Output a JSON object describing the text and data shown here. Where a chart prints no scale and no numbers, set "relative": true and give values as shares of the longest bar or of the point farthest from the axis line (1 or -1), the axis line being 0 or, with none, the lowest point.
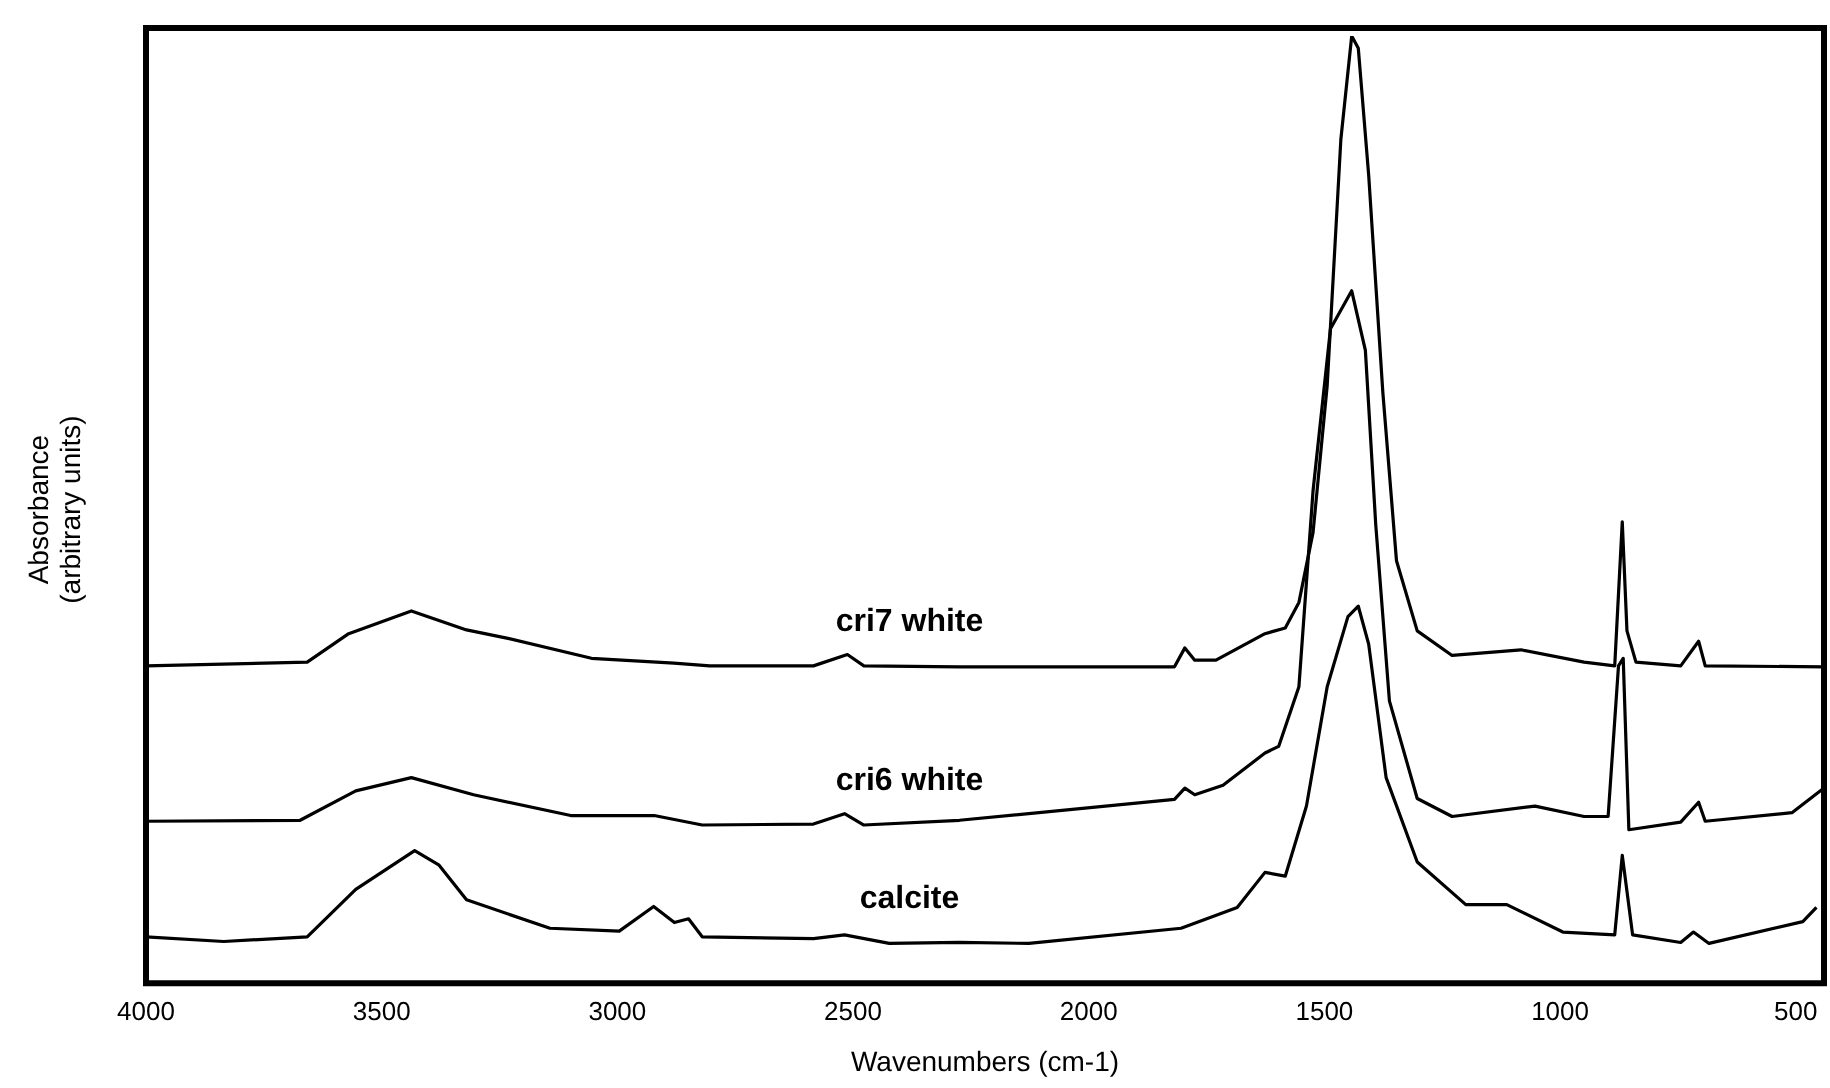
{
  "chart_data": {
    "type": "line",
    "relative": true,
    "xlabel": "Wavenumbers (cm-1)",
    "ylabel": "Absorbance\n(arbitrary units)",
    "xlim": [
      4000,
      440
    ],
    "xticks": [
      4000,
      3500,
      3000,
      2500,
      2000,
      1500,
      1000,
      500
    ],
    "grid": false,
    "legend": false,
    "marker": "none",
    "line_style": "solid",
    "series": [
      {
        "name": "cri7 white",
        "color": "#000000",
        "x": [
          4000,
          3658,
          3570,
          3437,
          3320,
          3232,
          3055,
          2880,
          2804,
          2584,
          2512,
          2477,
          2274,
          1818,
          1796,
          1775,
          1730,
          1626,
          1583,
          1554,
          1524,
          1494,
          1465,
          1442,
          1428,
          1406,
          1376,
          1347,
          1303,
          1229,
          1083,
          949,
          884,
          868,
          858,
          839,
          744,
          706,
          692,
          440
        ],
        "values": [
          0.335,
          0.339,
          0.369,
          0.393,
          0.373,
          0.364,
          0.343,
          0.338,
          0.335,
          0.335,
          0.347,
          0.335,
          0.334,
          0.334,
          0.354,
          0.341,
          0.341,
          0.369,
          0.375,
          0.402,
          0.476,
          0.631,
          0.891,
          1.0,
          0.987,
          0.853,
          0.624,
          0.446,
          0.372,
          0.346,
          0.352,
          0.339,
          0.335,
          0.487,
          0.372,
          0.339,
          0.335,
          0.361,
          0.335,
          0.334
        ]
      },
      {
        "name": "cri6 white",
        "color": "#000000",
        "x": [
          4000,
          3673,
          3555,
          3437,
          3305,
          3099,
          2922,
          2820,
          2584,
          2518,
          2477,
          2274,
          1818,
          1796,
          1775,
          1715,
          1626,
          1597,
          1554,
          1524,
          1487,
          1442,
          1413,
          1391,
          1362,
          1303,
          1229,
          1053,
          949,
          898,
          876,
          866,
          854,
          744,
          706,
          692,
          508,
          440
        ],
        "values": [
          0.171,
          0.172,
          0.203,
          0.217,
          0.199,
          0.177,
          0.177,
          0.167,
          0.168,
          0.179,
          0.167,
          0.172,
          0.194,
          0.206,
          0.199,
          0.209,
          0.243,
          0.25,
          0.313,
          0.52,
          0.691,
          0.731,
          0.668,
          0.484,
          0.298,
          0.195,
          0.176,
          0.187,
          0.176,
          0.176,
          0.335,
          0.343,
          0.162,
          0.17,
          0.191,
          0.171,
          0.18,
          0.206
        ]
      },
      {
        "name": "calcite",
        "color": "#000000",
        "x": [
          4000,
          3835,
          3658,
          3555,
          3430,
          3379,
          3320,
          3143,
          2996,
          2923,
          2879,
          2849,
          2820,
          2584,
          2518,
          2423,
          2274,
          2127,
          1804,
          1685,
          1626,
          1583,
          1538,
          1494,
          1450,
          1428,
          1406,
          1369,
          1303,
          1200,
          1113,
          994,
          884,
          868,
          846,
          744,
          717,
          684,
          485,
          456
        ],
        "values": [
          0.049,
          0.044,
          0.049,
          0.099,
          0.14,
          0.125,
          0.088,
          0.058,
          0.055,
          0.081,
          0.064,
          0.068,
          0.049,
          0.047,
          0.051,
          0.042,
          0.043,
          0.042,
          0.058,
          0.08,
          0.117,
          0.113,
          0.187,
          0.313,
          0.387,
          0.398,
          0.358,
          0.217,
          0.128,
          0.083,
          0.083,
          0.054,
          0.051,
          0.135,
          0.051,
          0.043,
          0.054,
          0.042,
          0.065,
          0.08
        ]
      }
    ]
  }
}
